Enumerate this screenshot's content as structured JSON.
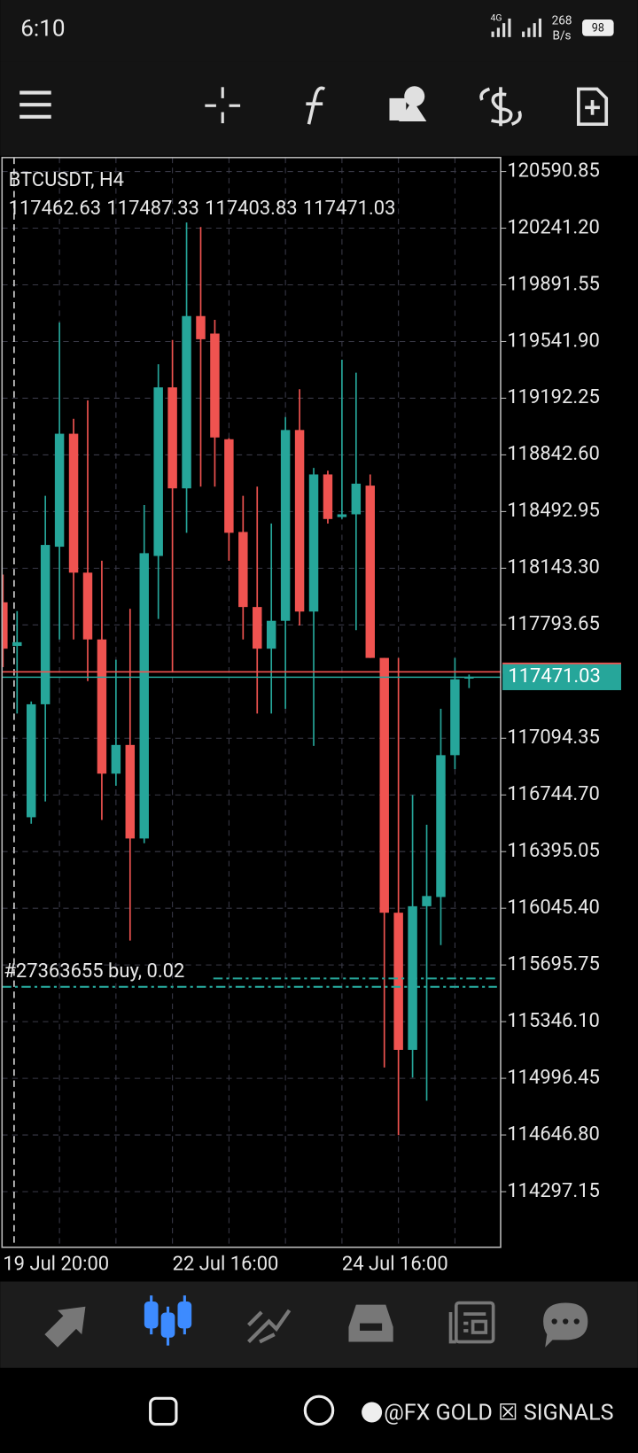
{
  "status_bar": {
    "time": "6:10",
    "network": "4G",
    "speed": "268",
    "speed_unit": "B/s",
    "battery": "98"
  },
  "chart_data": {
    "type": "candlestick",
    "symbol": "BTCUSDT, H4",
    "categories": [
      "19 Jul 20:00",
      null,
      null,
      null,
      null,
      null,
      null,
      null,
      null,
      null,
      null,
      null,
      "22 Jul 16:00",
      null,
      null,
      null,
      null,
      null,
      null,
      null,
      null,
      null,
      null,
      null,
      "24 Jul 16:00",
      null,
      null,
      null,
      null,
      null,
      null,
      null,
      null,
      null
    ],
    "open": [
      117933,
      117664,
      116607,
      117304,
      118276,
      118973,
      118116,
      117704,
      116876,
      117053,
      116476,
      118219,
      119259,
      118636,
      119699,
      119591,
      118939,
      118367,
      117904,
      117647,
      117819,
      118996,
      117876,
      118722,
      118459,
      118476,
      118653,
      117590,
      116018,
      115172,
      116058,
      116115,
      116990,
      117462.63
    ],
    "high": [
      118104,
      117879,
      117321,
      118590,
      119659,
      119065,
      119179,
      118190,
      117579,
      117893,
      118533,
      119402,
      119551,
      120276,
      120248,
      119676,
      118945,
      118590,
      118647,
      118419,
      119076,
      119248,
      118762,
      118745,
      119430,
      119350,
      118722,
      117590,
      117590,
      116744,
      116561,
      117276,
      117590,
      117487.33
    ],
    "low": [
      117533,
      117247,
      116567,
      116704,
      117704,
      117704,
      117447,
      116590,
      116801,
      115846,
      116447,
      117830,
      117504,
      118362,
      118647,
      118647,
      118190,
      117704,
      117247,
      117247,
      117276,
      117790,
      117047,
      118419,
      118447,
      117761,
      117590,
      115063,
      114646,
      115001,
      114858,
      115818,
      116904,
      117403.83
    ],
    "close": [
      117647,
      117687,
      117304,
      118287,
      118973,
      118116,
      117704,
      116876,
      117053,
      116476,
      118236,
      119259,
      118636,
      119699,
      119556,
      118950,
      118362,
      117904,
      117647,
      117819,
      118996,
      117876,
      118722,
      118447,
      118476,
      118665,
      117590,
      116018,
      115172,
      116058,
      116121,
      116990,
      117458,
      117471.03
    ],
    "up_color": "#26a69a",
    "down_color": "#ef5350",
    "ylim": [
      113954,
      120677
    ],
    "yticks": [
      120590.85,
      {
        "value": 120241.2,
        "label": "120241.20"
      },
      119891.55,
      {
        "value": 119541.9,
        "label": "119541.90"
      },
      119192.25,
      {
        "value": 118842.6,
        "label": "118842.60"
      },
      118492.95,
      {
        "value": 118143.3,
        "label": "118143.30"
      },
      117793.65,
      117094.35,
      {
        "value": 116744.7,
        "label": "116744.70"
      },
      116395.05,
      {
        "value": 116045.4,
        "label": "116045.40"
      },
      115695.75,
      {
        "value": 115346.1,
        "label": "115346.10"
      },
      114996.45,
      {
        "value": 114646.8,
        "label": "114646.80"
      },
      114297.15
    ],
    "grid": true,
    "ask_line": 117504,
    "order_line": {
      "label": "#27363655 buy, 0.02",
      "value": 115561
    }
  },
  "watermark": "@FX GOLD ☒ SIGNALS"
}
